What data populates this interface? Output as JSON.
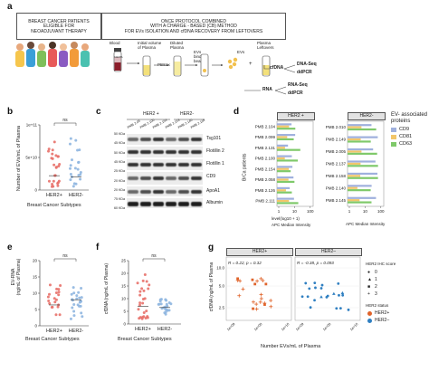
{
  "panel_a": {
    "label": "a",
    "box1": "BREAST CANCER PATIENTS\nELIGIBLE FOR\nNEOADJUVANT THERAPY",
    "box2": "ONCE PROTOCOL COMBINED\nWITH A CHARGE - BASED (CB) METHOD\nFOR EVs ISOLATION AND cfDNA RECOVERY FROM LEFTOVERS",
    "steps": {
      "blood": "Blood",
      "initial_volume": "Initial volume\nof Plasma",
      "diluted": "Diluted\nPlasma",
      "pbs": "PBS1x",
      "binding": "EVs\nbinding\nbeads",
      "evs": "EVs",
      "plasma_leftovers": "Plasma\nLeftovers",
      "cfdna": "cfDNA",
      "rna": "RNA",
      "dna_seq": "DNA-Seq",
      "ddpcr1": "ddPCR",
      "rna_seq": "RNA-Seq",
      "ddpcr2": "ddPCR",
      "tube_label": "K2EDTA",
      "plus": "+"
    }
  },
  "panel_b": {
    "label": "b",
    "ylabel": "Number of EVs/mL of Plasma",
    "xlabel": "Breast Cancer Subtypes",
    "sig": "ns",
    "yticks": [
      "1e+11",
      "5e+10",
      "0"
    ],
    "cats": [
      "HER2+",
      "HER2-"
    ]
  },
  "panel_c": {
    "label": "c",
    "groups": [
      "HER2 +",
      "HER2-"
    ],
    "lanes": [
      "PMB 2.09",
      "PMB 2.100",
      "PMB 2.154",
      "PMB 2.153",
      "PMB 2.140",
      "PMB 2.118"
    ],
    "proteins": [
      "Tsg101",
      "Flotillin 2",
      "Flotillin 1",
      "CD9",
      "ApoA1",
      "Albumin"
    ],
    "kda": [
      "50 KDa",
      "45 KDa",
      "50 KDa",
      "45 KDa",
      "25 KDa",
      "20 KDa",
      "20 KDa",
      "75 KDa",
      "60 KDa"
    ]
  },
  "panel_d": {
    "label": "d",
    "ylabel": "BrCa patients",
    "xlabel": "APC Median Intensity",
    "xlabel2": "level(log10 + 1)",
    "facet_left": "HER2 +",
    "facet_right": "HER2-",
    "left_patients": [
      "PMB 2.104",
      "PMB 2.099",
      "PMB 2.131",
      "PMB 2.100",
      "PMB 2.154",
      "PMB 2.058",
      "PMB 2.126",
      "PMB 2.111"
    ],
    "right_patients": [
      "PMB 2.010",
      "PMB 2.149",
      "PMB 2.005",
      "PMB 2.137",
      "PMB 2.158",
      "PMB 2.140",
      "PMB 2.145"
    ],
    "xticks": [
      "1",
      "10",
      "100"
    ],
    "legend_title": "EV- associated\nproteins",
    "legend": [
      {
        "name": "CD9",
        "color": "#9fb0dd"
      },
      {
        "name": "CD81",
        "color": "#f2c66a"
      },
      {
        "name": "CD63",
        "color": "#7fc96a"
      }
    ]
  },
  "panel_e": {
    "label": "e",
    "ylabel": "EV-RNA\n(ng/mL of Plasma)",
    "xlabel": "Breast Cancer Subtypes",
    "sig": "ns",
    "cats": [
      "HER2+",
      "HER2-"
    ],
    "yticks": [
      "20",
      "15",
      "10",
      "5",
      "0"
    ]
  },
  "panel_f": {
    "label": "f",
    "ylabel": "cfDNA (ng/mL of Plasma)",
    "xlabel": "Breast Cancer Subtypes",
    "sig": "ns",
    "cats": [
      "HER2+",
      "HER2-"
    ],
    "yticks": [
      "25",
      "20",
      "15",
      "10",
      "5",
      "0"
    ]
  },
  "panel_g": {
    "label": "g",
    "facet_left": "HER2+",
    "facet_right": "HER2–",
    "stat_left": "R = 0.22, p = 0.32",
    "stat_right": "R = -0.38, p = 0.093",
    "ylabel": "cfDNA (ng/mL of Plasma",
    "xlabel": "Number EVs/mL of Plasma",
    "yticks": [
      "10.0",
      "5.0",
      "2.5"
    ],
    "xticks": [
      "1e+09",
      "1e+08",
      "1e+10"
    ],
    "legend_ihc_title": "HER2 IHC score",
    "legend_ihc": [
      "0",
      "1",
      "2",
      "3"
    ],
    "legend_status_title": "HER2 status",
    "legend_status": [
      {
        "name": "HER2+",
        "color": "#e0632a"
      },
      {
        "name": "HER2–",
        "color": "#2f7fc1"
      }
    ]
  }
}
